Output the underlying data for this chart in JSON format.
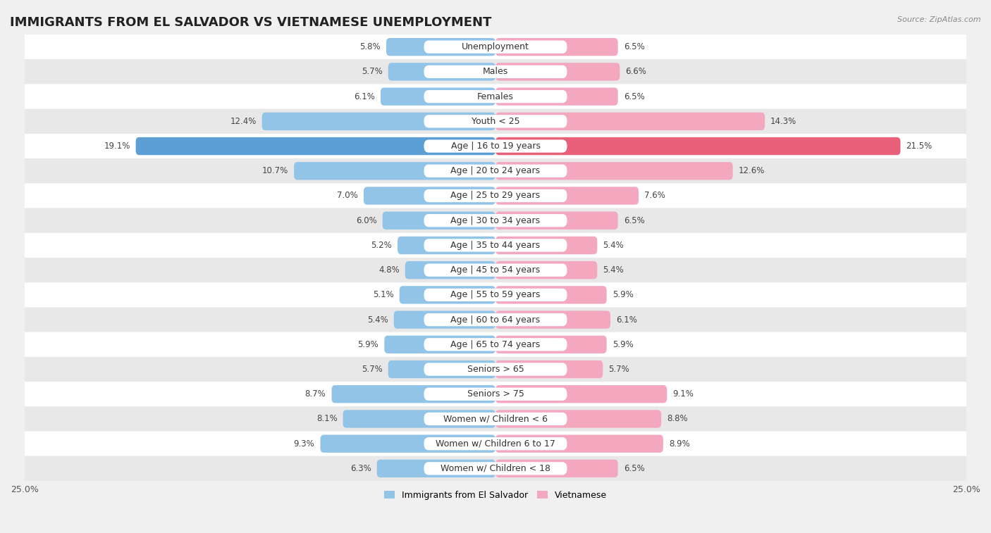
{
  "title": "IMMIGRANTS FROM EL SALVADOR VS VIETNAMESE UNEMPLOYMENT",
  "source": "Source: ZipAtlas.com",
  "categories": [
    "Unemployment",
    "Males",
    "Females",
    "Youth < 25",
    "Age | 16 to 19 years",
    "Age | 20 to 24 years",
    "Age | 25 to 29 years",
    "Age | 30 to 34 years",
    "Age | 35 to 44 years",
    "Age | 45 to 54 years",
    "Age | 55 to 59 years",
    "Age | 60 to 64 years",
    "Age | 65 to 74 years",
    "Seniors > 65",
    "Seniors > 75",
    "Women w/ Children < 6",
    "Women w/ Children 6 to 17",
    "Women w/ Children < 18"
  ],
  "left_values": [
    5.8,
    5.7,
    6.1,
    12.4,
    19.1,
    10.7,
    7.0,
    6.0,
    5.2,
    4.8,
    5.1,
    5.4,
    5.9,
    5.7,
    8.7,
    8.1,
    9.3,
    6.3
  ],
  "right_values": [
    6.5,
    6.6,
    6.5,
    14.3,
    21.5,
    12.6,
    7.6,
    6.5,
    5.4,
    5.4,
    5.9,
    6.1,
    5.9,
    5.7,
    9.1,
    8.8,
    8.9,
    6.5
  ],
  "left_color": "#92C4E8",
  "right_color": "#F4A8C0",
  "highlight_left_color": "#5B9FD4",
  "highlight_right_color": "#E8607A",
  "highlight_rows": [
    4
  ],
  "axis_max": 25.0,
  "bar_height": 0.72,
  "bg_color": "#f0f0f0",
  "row_bg_white": "#ffffff",
  "row_bg_gray": "#e8e8e8",
  "title_fontsize": 13,
  "label_fontsize": 9,
  "value_fontsize": 8.5,
  "legend_labels": [
    "Immigrants from El Salvador",
    "Vietnamese"
  ]
}
